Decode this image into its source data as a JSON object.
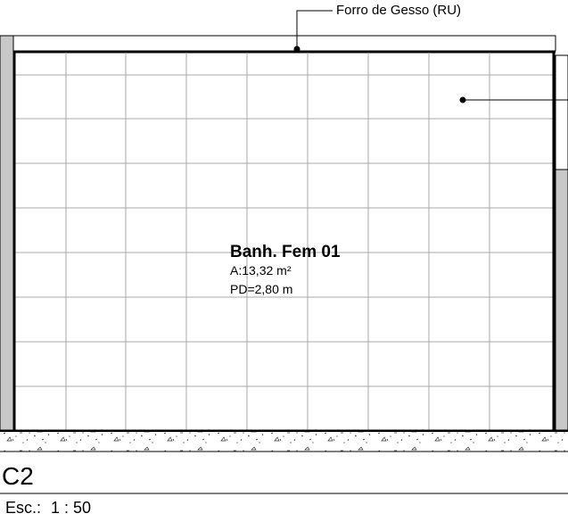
{
  "drawing": {
    "ceiling_label": "Forro de Gesso (RU)",
    "room": {
      "name": "Banh. Fem 01",
      "area": "A:13,32 m²",
      "ceiling_height": "PD=2,80 m"
    },
    "view_title": "C2",
    "scale_label": "Esc.:",
    "scale_value": "1 : 50"
  }
}
